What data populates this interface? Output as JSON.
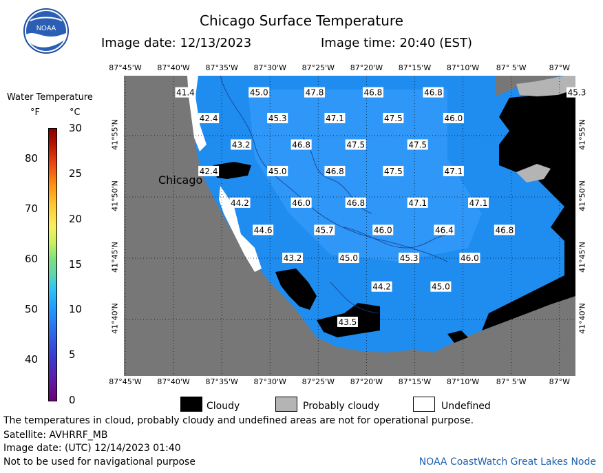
{
  "header": {
    "title": "Chicago Surface Temperature",
    "image_date": "Image date: 12/13/2023",
    "image_time": "Image time: 20:40 (EST)"
  },
  "logo": {
    "text": "NOAA"
  },
  "colorbar": {
    "title": "Water Temperature",
    "unit_f": "°F",
    "unit_c": "°C",
    "f_ticks": [
      "80",
      "70",
      "60",
      "50",
      "40"
    ],
    "c_ticks": [
      "30",
      "25",
      "20",
      "15",
      "10",
      "5",
      "0"
    ]
  },
  "axes": {
    "longitudes": [
      "87°45'W",
      "87°40'W",
      "87°35'W",
      "87°30'W",
      "87°25'W",
      "87°20'W",
      "87°15'W",
      "87°10'W",
      "87° 5'W",
      "87°W"
    ],
    "latitudes": [
      "41°55'N",
      "41°50'N",
      "41°45'N",
      "41°40'N"
    ]
  },
  "map": {
    "city_label": "Chicago",
    "colors": {
      "water": "#1f8cf0",
      "land": "#777777",
      "cloudy": "#000000",
      "probably_cloudy": "#b4b4b4",
      "undefined": "#ffffff"
    },
    "temps": [
      {
        "v": "41.4",
        "lon": -87.646,
        "lat": 41.975
      },
      {
        "v": "45.0",
        "lon": -87.519,
        "lat": 41.975
      },
      {
        "v": "47.8",
        "lon": -87.423,
        "lat": 41.975
      },
      {
        "v": "46.8",
        "lon": -87.322,
        "lat": 41.975
      },
      {
        "v": "46.8",
        "lon": -87.218,
        "lat": 41.975
      },
      {
        "v": "45.3",
        "lon": -86.97,
        "lat": 41.975
      },
      {
        "v": "42.4",
        "lon": -87.606,
        "lat": 41.94
      },
      {
        "v": "45.3",
        "lon": -87.487,
        "lat": 41.94
      },
      {
        "v": "47.1",
        "lon": -87.388,
        "lat": 41.94
      },
      {
        "v": "47.5",
        "lon": -87.287,
        "lat": 41.94
      },
      {
        "v": "46.0",
        "lon": -87.183,
        "lat": 41.94
      },
      {
        "v": "43.2",
        "lon": -87.55,
        "lat": 41.904
      },
      {
        "v": "46.8",
        "lon": -87.446,
        "lat": 41.904
      },
      {
        "v": "47.5",
        "lon": -87.352,
        "lat": 41.904
      },
      {
        "v": "47.5",
        "lon": -87.245,
        "lat": 41.904
      },
      {
        "v": "42.4",
        "lon": -87.606,
        "lat": 41.868
      },
      {
        "v": "45.0",
        "lon": -87.487,
        "lat": 41.868
      },
      {
        "v": "46.8",
        "lon": -87.388,
        "lat": 41.868
      },
      {
        "v": "47.5",
        "lon": -87.287,
        "lat": 41.868
      },
      {
        "v": "47.1",
        "lon": -87.183,
        "lat": 41.868
      },
      {
        "v": "44.2",
        "lon": -87.552,
        "lat": 41.825
      },
      {
        "v": "46.0",
        "lon": -87.446,
        "lat": 41.825
      },
      {
        "v": "46.8",
        "lon": -87.352,
        "lat": 41.825
      },
      {
        "v": "47.1",
        "lon": -87.245,
        "lat": 41.825
      },
      {
        "v": "47.1",
        "lon": -87.14,
        "lat": 41.825
      },
      {
        "v": "44.6",
        "lon": -87.512,
        "lat": 41.788
      },
      {
        "v": "45.7",
        "lon": -87.406,
        "lat": 41.788
      },
      {
        "v": "46.0",
        "lon": -87.305,
        "lat": 41.788
      },
      {
        "v": "46.4",
        "lon": -87.199,
        "lat": 41.788
      },
      {
        "v": "46.8",
        "lon": -87.095,
        "lat": 41.788
      },
      {
        "v": "43.2",
        "lon": -87.461,
        "lat": 41.75
      },
      {
        "v": "45.0",
        "lon": -87.364,
        "lat": 41.75
      },
      {
        "v": "45.3",
        "lon": -87.26,
        "lat": 41.75
      },
      {
        "v": "46.0",
        "lon": -87.155,
        "lat": 41.75
      },
      {
        "v": "44.2",
        "lon": -87.307,
        "lat": 41.711
      },
      {
        "v": "45.0",
        "lon": -87.205,
        "lat": 41.711
      },
      {
        "v": "43.5",
        "lon": -87.366,
        "lat": 41.663
      }
    ]
  },
  "legend": {
    "cloudy": "Cloudy",
    "probably_cloudy": "Probably cloudy",
    "undefined": "Undefined"
  },
  "footer": {
    "note": "The temperatures in cloud, probably cloudy and undefined areas are not for operational purpose.",
    "satellite": "Satellite: AVHRRF_MB",
    "utc_date": "Image date: (UTC) 12/14/2023  01:40",
    "nav_warning": "Not to be used for navigational purpose",
    "credit": "NOAA CoastWatch Great Lakes Node"
  }
}
